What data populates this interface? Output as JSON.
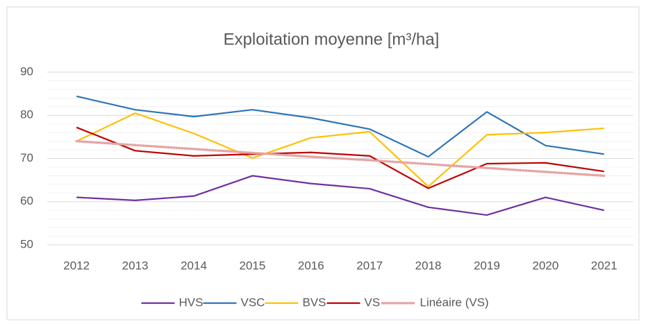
{
  "chart_data": {
    "type": "line",
    "title": "Exploitation moyenne [m³/ha]",
    "categories": [
      "2012",
      "2013",
      "2014",
      "2015",
      "2016",
      "2017",
      "2018",
      "2019",
      "2020",
      "2021"
    ],
    "series": [
      {
        "name": "HVS",
        "color": "#7030a0",
        "values": [
          61,
          60.3,
          61.3,
          66,
          64.2,
          63,
          58.7,
          56.9,
          61,
          58
        ]
      },
      {
        "name": "VSC",
        "color": "#2e75b6",
        "values": [
          84.4,
          81.3,
          79.7,
          81.3,
          79.4,
          76.8,
          70.4,
          80.8,
          73,
          71
        ]
      },
      {
        "name": "BVS",
        "color": "#ffc000",
        "values": [
          74,
          80.5,
          75.8,
          70.1,
          74.8,
          76.2,
          63.5,
          75.5,
          76,
          77
        ]
      },
      {
        "name": "VS",
        "color": "#c00000",
        "values": [
          77.2,
          71.8,
          70.6,
          71,
          71.4,
          70.6,
          63.1,
          68.8,
          69,
          67
        ]
      },
      {
        "name": "Linéaire (VS)",
        "color": "#e6a3a3",
        "dotted": true,
        "values": [
          74,
          73.1,
          72.2,
          71.3,
          70.4,
          69.6,
          68.7,
          67.8,
          66.9,
          66
        ]
      }
    ],
    "ylim": [
      50,
      90
    ],
    "yticks": [
      50,
      60,
      70,
      80,
      90
    ],
    "yminorticks": [
      52,
      54,
      56,
      58,
      62,
      64,
      66,
      68,
      72,
      74,
      76,
      78,
      82,
      84,
      86,
      88
    ],
    "grid": true,
    "legend": "bottom"
  }
}
